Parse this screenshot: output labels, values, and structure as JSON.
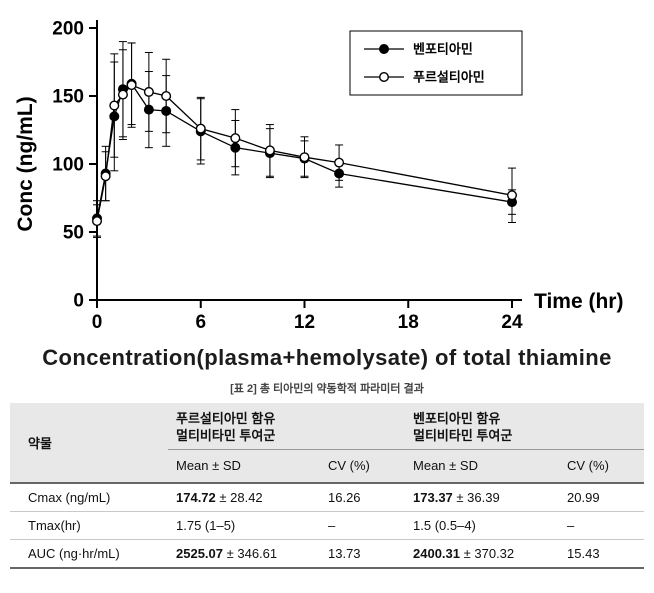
{
  "chart": {
    "title": "Concentration(plasma+hemolysate) of total thiamine",
    "ylabel": "Conc (ng/mL)",
    "xlabel": "Time (hr)"
  },
  "chart_data": {
    "type": "line",
    "title": "Concentration(plasma+hemolysate) of total thiamine",
    "xlabel": "Time (hr)",
    "ylabel": "Conc (ng/mL)",
    "xlim": [
      0,
      24
    ],
    "ylim": [
      0,
      200
    ],
    "xticks": [
      0,
      6,
      12,
      18,
      24
    ],
    "yticks": [
      0,
      50,
      100,
      150,
      200
    ],
    "legend_position": "top-right-box",
    "error_bars": true,
    "x": [
      0,
      0.5,
      1,
      1.5,
      2,
      3,
      4,
      6,
      8,
      10,
      12,
      14,
      24
    ],
    "series": [
      {
        "name": "벤포티아민",
        "marker": "filled",
        "values": [
          60,
          93,
          135,
          155,
          159,
          140,
          139,
          124,
          112,
          108,
          104,
          93,
          72
        ],
        "errors": [
          13,
          20,
          40,
          35,
          30,
          28,
          26,
          24,
          20,
          18,
          13,
          10,
          9
        ]
      },
      {
        "name": "푸르설티아민",
        "marker": "open",
        "values": [
          58,
          91,
          143,
          151,
          158,
          153,
          150,
          126,
          119,
          110,
          105,
          101,
          77
        ],
        "errors": [
          12,
          18,
          38,
          33,
          31,
          29,
          27,
          23,
          21,
          19,
          15,
          13,
          20
        ]
      }
    ]
  },
  "caption": "[표 2] 총 티아민의 약동학적 파라미터 결과",
  "table": {
    "param_header": "약물",
    "group1": {
      "line1": "푸르설티아민 함유",
      "line2": "멀티비타민 투여군"
    },
    "group2": {
      "line1": "벤포티아민 함유",
      "line2": "멀티비타민 투여군"
    },
    "sub_mean": "Mean ± SD",
    "sub_cv": "CV (%)",
    "rows": [
      {
        "param": "Cmax (ng/mL)",
        "g1_strong": "174.72",
        "g1_rest": " ± 28.42",
        "g1_cv": "16.26",
        "g2_strong": "173.37",
        "g2_rest": " ± 36.39",
        "g2_cv": "20.99"
      },
      {
        "param": "Tmax(hr)",
        "g1_strong": "",
        "g1_rest": "1.75 (1–5)",
        "g1_cv": "–",
        "g2_strong": "",
        "g2_rest": "1.5 (0.5–4)",
        "g2_cv": "–"
      },
      {
        "param": "AUC (ng·hr/mL)",
        "g1_strong": "2525.07",
        "g1_rest": " ± 346.61",
        "g1_cv": "13.73",
        "g2_strong": "2400.31",
        "g2_rest": " ± 370.32",
        "g2_cv": "15.43"
      }
    ]
  }
}
